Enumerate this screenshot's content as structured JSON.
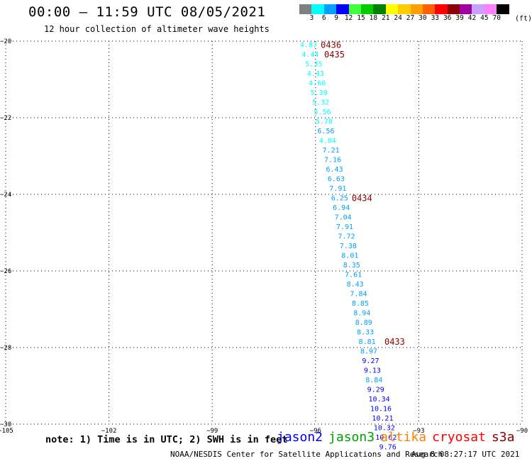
{
  "header": {
    "title": "00:00 – 11:59 UTC 08/05/2021",
    "subtitle": "12 hour collection of altimeter wave heights"
  },
  "color_scale": {
    "labels": [
      "3",
      "6",
      "9",
      "12",
      "15",
      "18",
      "21",
      "24",
      "27",
      "30",
      "33",
      "36",
      "39",
      "42",
      "45",
      "70"
    ],
    "unit": "(ft)",
    "colors": [
      "#808080",
      "#00ffff",
      "#00a0ff",
      "#0000ff",
      "#40ff40",
      "#00cc00",
      "#008000",
      "#ffff00",
      "#ffcc00",
      "#ffa000",
      "#ff6000",
      "#ff0000",
      "#8b0000",
      "#a000a0",
      "#c8a0ff",
      "#ff80ff",
      "#000000"
    ]
  },
  "footer": {
    "note": "note: 1) Time is in UTC; 2) SWH is in feet",
    "missions": [
      {
        "name": "jason2",
        "color": "#0000ff"
      },
      {
        "name": "jason3",
        "color": "#00a000"
      },
      {
        "name": "altika",
        "color": "#ff8000"
      },
      {
        "name": "cryosat",
        "color": "#ff0000"
      },
      {
        "name": "s3a",
        "color": "#8b0000"
      }
    ],
    "credit": "NOAA/NESDIS Center for Satellite Applications and Research",
    "timestamp": "Aug  8 08:27:17 UTC 2021"
  },
  "chart_data": {
    "type": "scatter",
    "title": "00:00 – 11:59 UTC 08/05/2021",
    "subtitle": "12 hour collection of altimeter wave heights",
    "xlim": [
      -105,
      -90
    ],
    "ylim": [
      -30,
      -20
    ],
    "x_ticks": [
      -105,
      -102,
      -99,
      -96,
      -93,
      -90
    ],
    "y_ticks": [
      -20,
      -22,
      -24,
      -26,
      -28,
      -30
    ],
    "grid": true,
    "series": [
      {
        "name": "s3a",
        "color": "#8b0000",
        "points": [
          {
            "lon": -96.2,
            "lat": -20.08,
            "swh": 4.87
          },
          {
            "lon": -96.15,
            "lat": -20.33,
            "swh": 4.44
          },
          {
            "lon": -96.05,
            "lat": -20.58,
            "swh": 5.35
          },
          {
            "lon": -96.0,
            "lat": -20.83,
            "swh": 4.43
          },
          {
            "lon": -95.95,
            "lat": -21.08,
            "swh": 4.6
          },
          {
            "lon": -95.9,
            "lat": -21.33,
            "swh": 5.39
          },
          {
            "lon": -95.85,
            "lat": -21.58,
            "swh": 5.32
          },
          {
            "lon": -95.8,
            "lat": -21.83,
            "swh": 5.56
          },
          {
            "lon": -95.75,
            "lat": -22.08,
            "swh": 5.78
          },
          {
            "lon": -95.7,
            "lat": -22.33,
            "swh": 6.56
          },
          {
            "lon": -95.65,
            "lat": -22.58,
            "swh": 4.84
          },
          {
            "lon": -95.55,
            "lat": -22.83,
            "swh": 7.21
          },
          {
            "lon": -95.5,
            "lat": -23.08,
            "swh": 7.16
          },
          {
            "lon": -95.45,
            "lat": -23.33,
            "swh": 6.43
          },
          {
            "lon": -95.4,
            "lat": -23.58,
            "swh": 6.63
          },
          {
            "lon": -95.35,
            "lat": -23.83,
            "swh": 7.91
          },
          {
            "lon": -95.3,
            "lat": -24.08,
            "swh": 6.25
          },
          {
            "lon": -95.25,
            "lat": -24.33,
            "swh": 6.94
          },
          {
            "lon": -95.2,
            "lat": -24.58,
            "swh": 7.04
          },
          {
            "lon": -95.15,
            "lat": -24.83,
            "swh": 7.91
          },
          {
            "lon": -95.1,
            "lat": -25.08,
            "swh": 7.72
          },
          {
            "lon": -95.05,
            "lat": -25.33,
            "swh": 7.38
          },
          {
            "lon": -95.0,
            "lat": -25.58,
            "swh": 8.01
          },
          {
            "lon": -94.95,
            "lat": -25.83,
            "swh": 8.35
          },
          {
            "lon": -94.9,
            "lat": -26.08,
            "swh": 7.61
          },
          {
            "lon": -94.85,
            "lat": -26.33,
            "swh": 8.43
          },
          {
            "lon": -94.75,
            "lat": -26.58,
            "swh": 7.84
          },
          {
            "lon": -94.7,
            "lat": -26.83,
            "swh": 8.85
          },
          {
            "lon": -94.65,
            "lat": -27.08,
            "swh": 8.94
          },
          {
            "lon": -94.6,
            "lat": -27.33,
            "swh": 8.89
          },
          {
            "lon": -94.55,
            "lat": -27.58,
            "swh": 8.33
          },
          {
            "lon": -94.5,
            "lat": -27.83,
            "swh": 8.81
          },
          {
            "lon": -94.45,
            "lat": -28.08,
            "swh": 8.97
          },
          {
            "lon": -94.4,
            "lat": -28.33,
            "swh": 9.27
          },
          {
            "lon": -94.35,
            "lat": -28.58,
            "swh": 9.13
          },
          {
            "lon": -94.3,
            "lat": -28.83,
            "swh": 8.84
          },
          {
            "lon": -94.25,
            "lat": -29.08,
            "swh": 9.29
          },
          {
            "lon": -94.15,
            "lat": -29.33,
            "swh": 10.34
          },
          {
            "lon": -94.1,
            "lat": -29.58,
            "swh": 10.16
          },
          {
            "lon": -94.05,
            "lat": -29.83,
            "swh": 10.21
          },
          {
            "lon": -94.0,
            "lat": -30.08,
            "swh": 10.32
          },
          {
            "lon": -93.95,
            "lat": -30.33,
            "swh": 10.62
          },
          {
            "lon": -93.9,
            "lat": -30.58,
            "swh": 9.76
          }
        ],
        "time_labels": [
          {
            "text": "0436",
            "lon": -95.55,
            "lat": -20.08
          },
          {
            "text": "0435",
            "lon": -95.45,
            "lat": -20.33
          },
          {
            "text": "0434",
            "lon": -94.65,
            "lat": -24.08
          },
          {
            "text": "0433",
            "lon": -93.7,
            "lat": -27.83
          }
        ]
      }
    ]
  }
}
